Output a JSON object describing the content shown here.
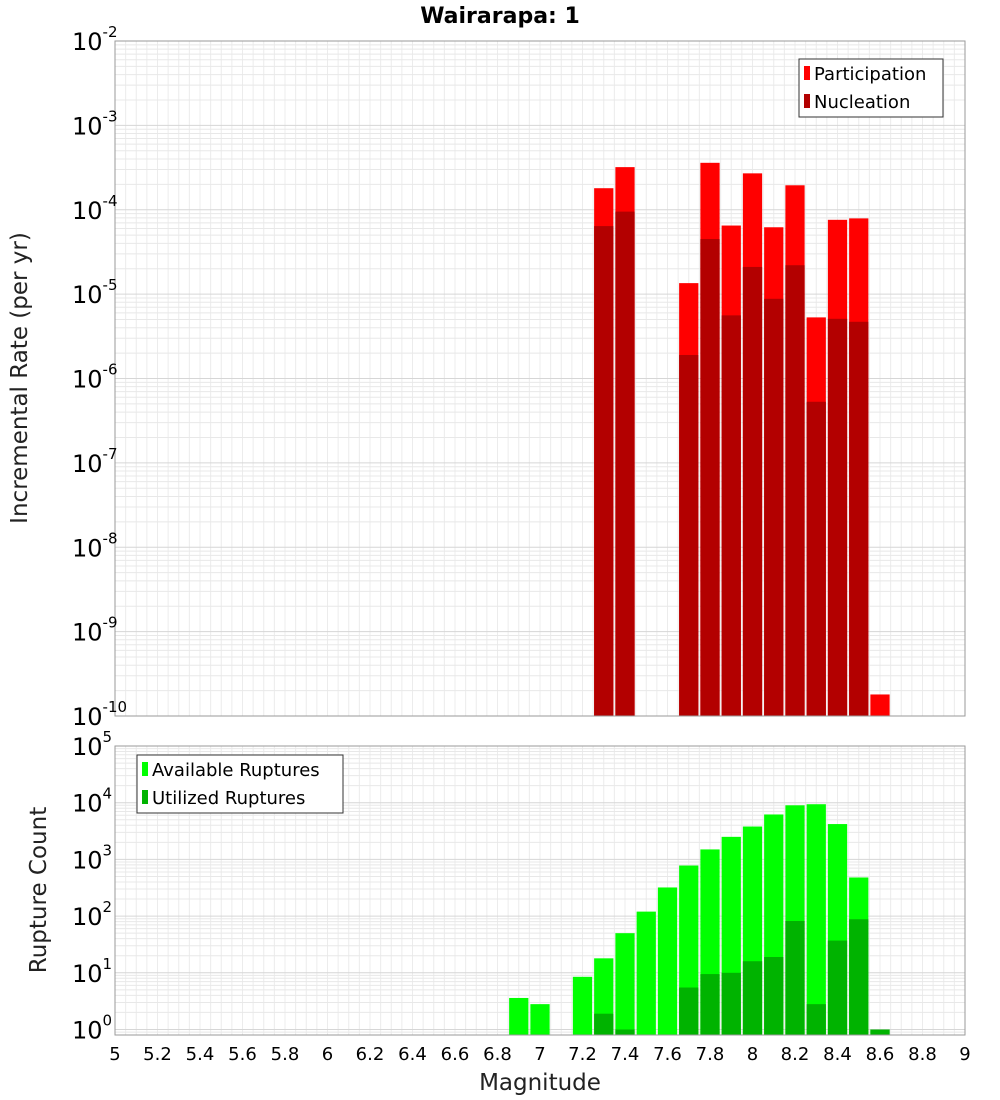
{
  "chart_data": [
    {
      "type": "bar",
      "title": "Wairarapa: 1",
      "xlabel": "",
      "ylabel": "Incremental Rate (per yr)",
      "yscale": "log",
      "xlim": [
        5,
        9
      ],
      "ylim": [
        1e-10,
        0.01
      ],
      "ytick_base": "10",
      "ytick_exponents": [
        "-10",
        "-9",
        "-8",
        "-7",
        "-6",
        "-5",
        "-4",
        "-3",
        "-2"
      ],
      "bin_width": 0.1,
      "legend": {
        "position": "top-right",
        "entries": [
          {
            "label": "Participation",
            "color": "#ff0000"
          },
          {
            "label": "Nucleation",
            "color": "#b30000"
          }
        ]
      },
      "series": [
        {
          "name": "Participation",
          "color": "#ff0000",
          "x": [
            7.3,
            7.4,
            7.7,
            7.8,
            7.9,
            8.0,
            8.1,
            8.2,
            8.3,
            8.4,
            8.5,
            8.6
          ],
          "values": [
            0.00018,
            0.00032,
            1.35e-05,
            0.00036,
            6.5e-05,
            0.00027,
            6.2e-05,
            0.000195,
            5.3e-06,
            7.6e-05,
            7.9e-05,
            1.8e-10
          ]
        },
        {
          "name": "Nucleation",
          "color": "#b30000",
          "x": [
            7.3,
            7.4,
            7.7,
            7.8,
            7.9,
            8.0,
            8.1,
            8.2,
            8.3,
            8.4,
            8.5
          ],
          "values": [
            6.4e-05,
            9.5e-05,
            1.9e-06,
            4.5e-05,
            5.6e-06,
            2.1e-05,
            8.8e-06,
            2.2e-05,
            5.3e-07,
            5.1e-06,
            4.7e-06
          ]
        }
      ]
    },
    {
      "type": "bar",
      "title": "",
      "xlabel": "Magnitude",
      "ylabel": "Rupture Count",
      "yscale": "log",
      "xlim": [
        5,
        9
      ],
      "ylim": [
        0.8,
        100000.0
      ],
      "ytick_base": "10",
      "ytick_exponents": [
        "0",
        "1",
        "2",
        "3",
        "4",
        "5"
      ],
      "xticks": [
        "5",
        "5.2",
        "5.4",
        "5.6",
        "5.8",
        "6",
        "6.2",
        "6.4",
        "6.6",
        "6.8",
        "7",
        "7.2",
        "7.4",
        "7.6",
        "7.8",
        "8",
        "8.2",
        "8.4",
        "8.6",
        "8.8",
        "9"
      ],
      "bin_width": 0.1,
      "legend": {
        "position": "top-left",
        "entries": [
          {
            "label": "Available Ruptures",
            "color": "#00ff00"
          },
          {
            "label": "Utilized Ruptures",
            "color": "#00b300"
          }
        ]
      },
      "series": [
        {
          "name": "Available Ruptures",
          "color": "#00ff00",
          "x": [
            6.9,
            7.0,
            7.2,
            7.3,
            7.4,
            7.5,
            7.6,
            7.7,
            7.8,
            7.9,
            8.0,
            8.1,
            8.2,
            8.3,
            8.4,
            8.5,
            8.6
          ],
          "values": [
            3.6,
            2.8,
            8.5,
            18,
            50,
            120,
            320,
            780,
            1500,
            2500,
            3800,
            6200,
            9000,
            9400,
            4200,
            480,
            1
          ]
        },
        {
          "name": "Utilized Ruptures",
          "color": "#00b300",
          "x": [
            7.3,
            7.4,
            7.7,
            7.8,
            7.9,
            8.0,
            8.1,
            8.2,
            8.3,
            8.4,
            8.5,
            8.6
          ],
          "values": [
            1.9,
            1,
            5.5,
            9.5,
            10,
            16,
            19,
            82,
            2.8,
            37,
            88,
            1
          ]
        }
      ]
    }
  ]
}
